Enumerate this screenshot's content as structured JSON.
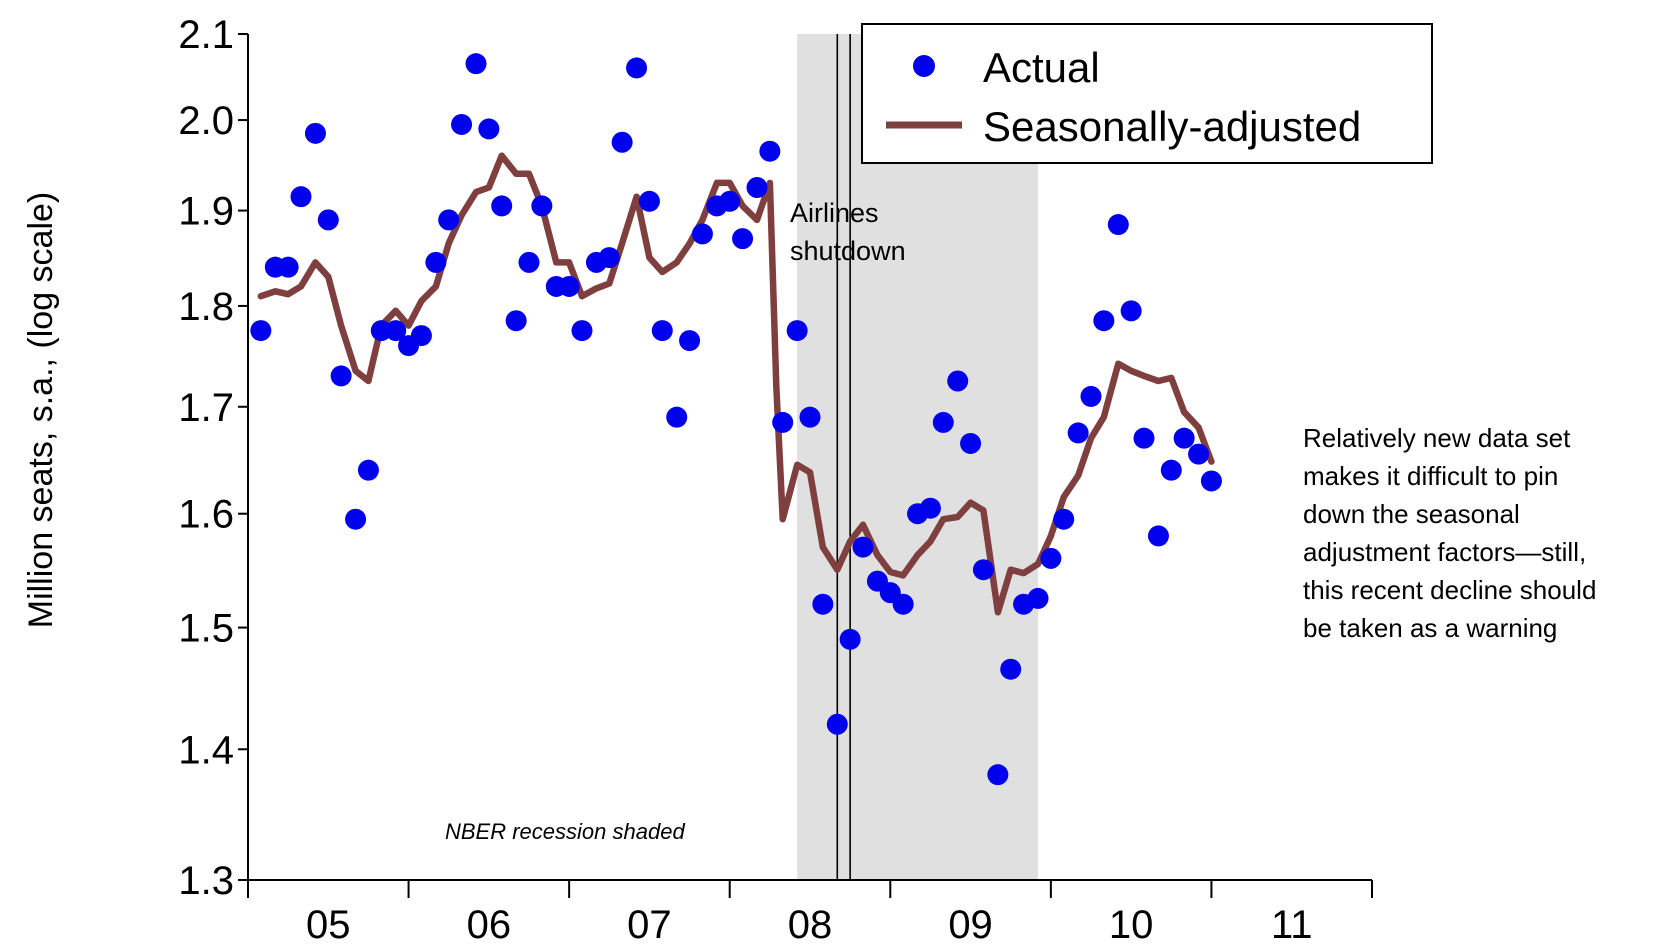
{
  "chart_data": {
    "type": "scatter",
    "ylabel": "Million seats, s.a., (log scale)",
    "y_scale": "log",
    "ylim": [
      1.3,
      2.1
    ],
    "y_ticks": [
      "1.3",
      "1.4",
      "1.5",
      "1.6",
      "1.7",
      "1.8",
      "1.9",
      "2.0",
      "2.1"
    ],
    "xlim": [
      2004.5,
      2011.5
    ],
    "x_tick_positions": [
      2004.5,
      2005.5,
      2006.5,
      2007.5,
      2008.5,
      2009.5,
      2010.5,
      2011.5
    ],
    "x_labels": [
      {
        "label": "05",
        "x": 2005.0
      },
      {
        "label": "06",
        "x": 2006.0
      },
      {
        "label": "07",
        "x": 2007.0
      },
      {
        "label": "08",
        "x": 2008.0
      },
      {
        "label": "09",
        "x": 2009.0
      },
      {
        "label": "10",
        "x": 2010.0
      },
      {
        "label": "11",
        "x": 2011.0
      }
    ],
    "legend": {
      "placement": "top-right",
      "actual": "Actual",
      "sa": "Seasonally-adjusted"
    },
    "colors": {
      "actual": "#0000ee",
      "sa": "#7f3f3f",
      "shade": "#e0e0e0"
    },
    "recession": {
      "start": 2007.92,
      "end": 2009.42,
      "label": "NBER recession shaded"
    },
    "shutdown_lines": [
      2008.17,
      2008.25
    ],
    "shutdown_label": [
      "Airlines",
      "shutdown"
    ],
    "note": [
      "Relatively new data set",
      "makes it difficult to pin",
      "down the seasonal",
      "adjustment factors—still,",
      "this recent decline should",
      "be taken as a warning"
    ],
    "series": [
      {
        "name": "Actual",
        "points": [
          [
            2004.58,
            1.775
          ],
          [
            2004.67,
            1.84
          ],
          [
            2004.75,
            1.84
          ],
          [
            2004.83,
            1.915
          ],
          [
            2004.92,
            1.985
          ],
          [
            2005.0,
            1.89
          ],
          [
            2005.08,
            1.73
          ],
          [
            2005.17,
            1.595
          ],
          [
            2005.25,
            1.64
          ],
          [
            2005.33,
            1.775
          ],
          [
            2005.42,
            1.775
          ],
          [
            2005.5,
            1.76
          ],
          [
            2005.58,
            1.77
          ],
          [
            2005.67,
            1.845
          ],
          [
            2005.75,
            1.89
          ],
          [
            2005.83,
            1.995
          ],
          [
            2005.92,
            2.065
          ],
          [
            2006.0,
            1.99
          ],
          [
            2006.08,
            1.905
          ],
          [
            2006.17,
            1.785
          ],
          [
            2006.25,
            1.845
          ],
          [
            2006.33,
            1.905
          ],
          [
            2006.42,
            1.82
          ],
          [
            2006.5,
            1.82
          ],
          [
            2006.58,
            1.775
          ],
          [
            2006.67,
            1.845
          ],
          [
            2006.75,
            1.85
          ],
          [
            2006.83,
            1.975
          ],
          [
            2006.92,
            2.06
          ],
          [
            2007.0,
            1.91
          ],
          [
            2007.08,
            1.775
          ],
          [
            2007.17,
            1.69
          ],
          [
            2007.25,
            1.765
          ],
          [
            2007.33,
            1.875
          ],
          [
            2007.42,
            1.905
          ],
          [
            2007.5,
            1.91
          ],
          [
            2007.58,
            1.87
          ],
          [
            2007.67,
            1.925
          ],
          [
            2007.75,
            1.965
          ],
          [
            2007.83,
            1.685
          ],
          [
            2007.92,
            1.775
          ],
          [
            2008.0,
            1.69
          ],
          [
            2008.08,
            1.52
          ],
          [
            2008.17,
            1.42
          ],
          [
            2008.25,
            1.49
          ],
          [
            2008.33,
            1.57
          ],
          [
            2008.42,
            1.54
          ],
          [
            2008.5,
            1.53
          ],
          [
            2008.58,
            1.52
          ],
          [
            2008.67,
            1.6
          ],
          [
            2008.75,
            1.605
          ],
          [
            2008.83,
            1.685
          ],
          [
            2008.92,
            1.725
          ],
          [
            2009.0,
            1.665
          ],
          [
            2009.08,
            1.55
          ],
          [
            2009.17,
            1.38
          ],
          [
            2009.25,
            1.465
          ],
          [
            2009.33,
            1.52
          ],
          [
            2009.42,
            1.525
          ],
          [
            2009.5,
            1.56
          ],
          [
            2009.58,
            1.595
          ],
          [
            2009.67,
            1.675
          ],
          [
            2009.75,
            1.71
          ],
          [
            2009.83,
            1.785
          ],
          [
            2009.92,
            1.885
          ],
          [
            2010.0,
            1.795
          ],
          [
            2010.08,
            1.67
          ],
          [
            2010.17,
            1.58
          ],
          [
            2010.25,
            1.64
          ],
          [
            2010.33,
            1.67
          ],
          [
            2010.42,
            1.655
          ],
          [
            2010.5,
            1.63
          ]
        ]
      },
      {
        "name": "Seasonally-adjusted",
        "points": [
          [
            2004.58,
            1.81
          ],
          [
            2004.67,
            1.815
          ],
          [
            2004.75,
            1.812
          ],
          [
            2004.83,
            1.82
          ],
          [
            2004.92,
            1.845
          ],
          [
            2005.0,
            1.83
          ],
          [
            2005.08,
            1.78
          ],
          [
            2005.17,
            1.735
          ],
          [
            2005.25,
            1.725
          ],
          [
            2005.33,
            1.78
          ],
          [
            2005.42,
            1.795
          ],
          [
            2005.5,
            1.78
          ],
          [
            2005.58,
            1.805
          ],
          [
            2005.67,
            1.82
          ],
          [
            2005.75,
            1.865
          ],
          [
            2005.83,
            1.895
          ],
          [
            2005.92,
            1.92
          ],
          [
            2006.0,
            1.925
          ],
          [
            2006.08,
            1.96
          ],
          [
            2006.17,
            1.94
          ],
          [
            2006.25,
            1.94
          ],
          [
            2006.33,
            1.905
          ],
          [
            2006.42,
            1.845
          ],
          [
            2006.5,
            1.845
          ],
          [
            2006.58,
            1.81
          ],
          [
            2006.67,
            1.818
          ],
          [
            2006.75,
            1.823
          ],
          [
            2006.83,
            1.865
          ],
          [
            2006.92,
            1.915
          ],
          [
            2007.0,
            1.85
          ],
          [
            2007.08,
            1.835
          ],
          [
            2007.17,
            1.845
          ],
          [
            2007.25,
            1.865
          ],
          [
            2007.33,
            1.89
          ],
          [
            2007.42,
            1.93
          ],
          [
            2007.5,
            1.93
          ],
          [
            2007.58,
            1.905
          ],
          [
            2007.67,
            1.89
          ],
          [
            2007.75,
            1.93
          ],
          [
            2007.79,
            1.72
          ],
          [
            2007.83,
            1.595
          ],
          [
            2007.92,
            1.645
          ],
          [
            2008.0,
            1.638
          ],
          [
            2008.08,
            1.57
          ],
          [
            2008.17,
            1.55
          ],
          [
            2008.25,
            1.575
          ],
          [
            2008.33,
            1.59
          ],
          [
            2008.42,
            1.563
          ],
          [
            2008.5,
            1.548
          ],
          [
            2008.58,
            1.545
          ],
          [
            2008.67,
            1.563
          ],
          [
            2008.75,
            1.575
          ],
          [
            2008.83,
            1.595
          ],
          [
            2008.92,
            1.597
          ],
          [
            2009.0,
            1.61
          ],
          [
            2009.08,
            1.603
          ],
          [
            2009.17,
            1.513
          ],
          [
            2009.25,
            1.55
          ],
          [
            2009.33,
            1.547
          ],
          [
            2009.42,
            1.555
          ],
          [
            2009.5,
            1.58
          ],
          [
            2009.58,
            1.615
          ],
          [
            2009.67,
            1.635
          ],
          [
            2009.75,
            1.67
          ],
          [
            2009.83,
            1.69
          ],
          [
            2009.92,
            1.742
          ],
          [
            2010.0,
            1.735
          ],
          [
            2010.08,
            1.73
          ],
          [
            2010.17,
            1.725
          ],
          [
            2010.25,
            1.728
          ],
          [
            2010.33,
            1.695
          ],
          [
            2010.42,
            1.68
          ],
          [
            2010.5,
            1.648
          ]
        ]
      }
    ]
  }
}
